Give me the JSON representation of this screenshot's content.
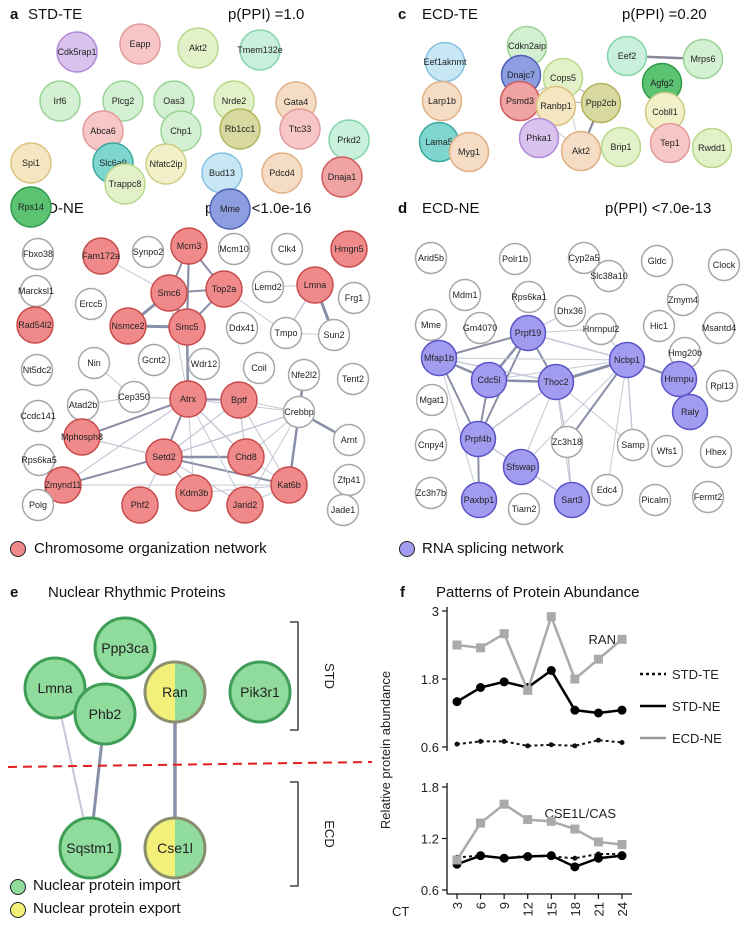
{
  "panel_a": {
    "letter": "a",
    "title": "STD-TE",
    "ppi": "p(PPI) =1.0",
    "nodes": [
      {
        "label": "Cdk5rap1",
        "fill": "#d9c2ee",
        "stroke": "#b08ad6"
      },
      {
        "label": "Eapp",
        "fill": "#f7c6c6",
        "stroke": "#e39a9a"
      },
      {
        "label": "Akt2",
        "fill": "#e3f1c8",
        "stroke": "#b8d98a"
      },
      {
        "label": "Tmem132e",
        "fill": "#c8f0dc",
        "stroke": "#86d4a8"
      },
      {
        "label": "Irf6",
        "fill": "#d4f0d2",
        "stroke": "#9bd397"
      },
      {
        "label": "Plcg2",
        "fill": "#d4f0d2",
        "stroke": "#9bd397"
      },
      {
        "label": "Oas3",
        "fill": "#d4f0d2",
        "stroke": "#9bd397"
      },
      {
        "label": "Nrde2",
        "fill": "#e3f1c8",
        "stroke": "#b8d98a"
      },
      {
        "label": "Gata4",
        "fill": "#f5dcc4",
        "stroke": "#e0b185"
      },
      {
        "label": "Abca6",
        "fill": "#f7c6c6",
        "stroke": "#e39a9a"
      },
      {
        "label": "Chp1",
        "fill": "#d4f0d2",
        "stroke": "#9bd397"
      },
      {
        "label": "Rb1cc1",
        "fill": "#d8d9a0",
        "stroke": "#b3b45a"
      },
      {
        "label": "Ttc33",
        "fill": "#f7c6c6",
        "stroke": "#e39a9a"
      },
      {
        "label": "Prkd2",
        "fill": "#c8f0dc",
        "stroke": "#86d4a8"
      },
      {
        "label": "Spi1",
        "fill": "#f5e6c2",
        "stroke": "#dcc27f"
      },
      {
        "label": "Slc6a9",
        "fill": "#7fd6cf",
        "stroke": "#3aa89e"
      },
      {
        "label": "Nfatc2ip",
        "fill": "#f2f0c8",
        "stroke": "#d0cc86"
      },
      {
        "label": "Bud13",
        "fill": "#c7e7f5",
        "stroke": "#86c2e0"
      },
      {
        "label": "Pdcd4",
        "fill": "#f5dcc4",
        "stroke": "#e0b185"
      },
      {
        "label": "Rps14",
        "fill": "#5cc373",
        "stroke": "#2f9a48"
      },
      {
        "label": "Trappc8",
        "fill": "#e3f1c8",
        "stroke": "#b8d98a"
      },
      {
        "label": "Mme",
        "fill": "#8d9ee0",
        "stroke": "#4d60b5"
      },
      {
        "label": "Dnaja1",
        "fill": "#f0a3a3",
        "stroke": "#d25c5c"
      }
    ]
  },
  "panel_c": {
    "letter": "c",
    "title": "ECD-TE",
    "ppi": "p(PPI) =0.20",
    "nodes": [
      {
        "label": "Eef1aknmt",
        "fill": "#c7e7f5",
        "stroke": "#86c2e0"
      },
      {
        "label": "Cdkn2aip",
        "fill": "#d4f0d2",
        "stroke": "#9bd397"
      },
      {
        "label": "Eef2",
        "fill": "#c8f0dc",
        "stroke": "#86d4a8"
      },
      {
        "label": "Mrps6",
        "fill": "#d4f0d2",
        "stroke": "#9bd397"
      },
      {
        "label": "Dnajc7",
        "fill": "#8d9ee0",
        "stroke": "#4d60b5"
      },
      {
        "label": "Cops5",
        "fill": "#e3f1c8",
        "stroke": "#b8d98a"
      },
      {
        "label": "Agfg2",
        "fill": "#5cc373",
        "stroke": "#2f9a48"
      },
      {
        "label": "Larp1b",
        "fill": "#f5dcc4",
        "stroke": "#e0b185"
      },
      {
        "label": "Psmd3",
        "fill": "#f0a3a3",
        "stroke": "#d25c5c"
      },
      {
        "label": "Ranbp1",
        "fill": "#f5e6c2",
        "stroke": "#dcc27f"
      },
      {
        "label": "Ppp2cb",
        "fill": "#d8d9a0",
        "stroke": "#b3b45a"
      },
      {
        "label": "Cobll1",
        "fill": "#f2f0c8",
        "stroke": "#d0cc86"
      },
      {
        "label": "Lama5",
        "fill": "#7fd6cf",
        "stroke": "#3aa89e"
      },
      {
        "label": "Phka1",
        "fill": "#d9c2ee",
        "stroke": "#b08ad6"
      },
      {
        "label": "Myg1",
        "fill": "#f5dcc4",
        "stroke": "#e0b185"
      },
      {
        "label": "Akt2",
        "fill": "#f5dcc4",
        "stroke": "#e0b185"
      },
      {
        "label": "Brip1",
        "fill": "#e3f1c8",
        "stroke": "#b8d98a"
      },
      {
        "label": "Tep1",
        "fill": "#f7c6c6",
        "stroke": "#e39a9a"
      },
      {
        "label": "Rwdd1",
        "fill": "#e3f1c8",
        "stroke": "#b8d98a"
      }
    ]
  },
  "panel_b": {
    "letter": "b",
    "title": "STD-NE",
    "ppi": "p(PPI) <1.0e-16",
    "nodes": [
      "Fbxo38",
      "Fam172a",
      "Synpo2",
      "Mcm3",
      "Mcm10",
      "Clk4",
      "Hmgn5",
      "Marcksl1",
      "Smc6",
      "Top2a",
      "Lemd2",
      "Lmna",
      "Frg1",
      "Ercc5",
      "Nsmce2",
      "Smc5",
      "Ddx41",
      "Tmpo",
      "Sun2",
      "Rad54l2",
      "Nin",
      "Gcnt2",
      "Wdr12",
      "Coil",
      "Nfe2l2",
      "Tent2",
      "Nt5dc2",
      "Cep350",
      "Atrx",
      "Bptf",
      "Crebbp",
      "Atad2b",
      "Arnt",
      "Ccdc141",
      "Mphosph8",
      "Setd2",
      "Chd8",
      "Rps6ka5",
      "Zfp41",
      "Zmynd11",
      "Kdm3b",
      "Kat6b",
      "Polg",
      "Phf2",
      "Jarid2",
      "Jade1"
    ],
    "highlighted": [
      "Fam172a",
      "Mcm3",
      "Hmgn5",
      "Smc6",
      "Top2a",
      "Lmna",
      "Nsmce2",
      "Smc5",
      "Rad54l2",
      "Atrx",
      "Bptf",
      "Mphosph8",
      "Setd2",
      "Chd8",
      "Zmynd11",
      "Kdm3b",
      "Kat6b",
      "Phf2",
      "Jarid2"
    ],
    "highlight_color": "#f08a8a"
  },
  "panel_d": {
    "letter": "d",
    "title": "ECD-NE",
    "ppi": "p(PPI) <7.0e-13",
    "nodes": [
      "Arid5b",
      "Polr1b",
      "Cyp2a5",
      "Gldc",
      "Clock",
      "Mdm1",
      "Rps6ka1",
      "Slc38a10",
      "Zmym4",
      "Mme",
      "Gm4070",
      "Dhx36",
      "Hic1",
      "Msantd4",
      "Prpf19",
      "Hnrnpul2",
      "Hmg20b",
      "Mfap1b",
      "Ncbp1",
      "Hnrnpu",
      "Rpl13",
      "Mgat1",
      "Cdc5l",
      "Thoc2",
      "Raly",
      "Cnpy4",
      "Prpf4b",
      "Zc3h18",
      "Samp",
      "Wfs1",
      "Hhex",
      "Sfswap",
      "Edc4",
      "Zc3h7b",
      "Paxbp1",
      "Tiam2",
      "Sart3",
      "Picalm",
      "Fermt2"
    ],
    "highlighted": [
      "Prpf19",
      "Mfap1b",
      "Ncbp1",
      "Hnrnpu",
      "Cdc5l",
      "Thoc2",
      "Raly",
      "Prpf4b",
      "Sfswap",
      "Paxbp1",
      "Sart3"
    ],
    "highlight_color": "#a29cf0"
  },
  "legend_bd": {
    "chromosome": {
      "label": "Chromosome organization network",
      "color": "#f08a8a"
    },
    "splicing": {
      "label": "RNA splicing network",
      "color": "#a29cf0"
    }
  },
  "panel_e": {
    "letter": "e",
    "title": "Nuclear Rhythmic Proteins",
    "std_label": "STD",
    "ecd_label": "ECD",
    "nodes": [
      {
        "label": "Ppp3ca",
        "type": "import"
      },
      {
        "label": "Lmna",
        "type": "import"
      },
      {
        "label": "Phb2",
        "type": "import"
      },
      {
        "label": "Ran",
        "type": "both"
      },
      {
        "label": "Pik3r1",
        "type": "import"
      },
      {
        "label": "Sqstm1",
        "type": "import"
      },
      {
        "label": "Cse1l",
        "type": "both"
      }
    ],
    "legend": {
      "import": {
        "label": "Nuclear protein import",
        "color": "#8fdc9c"
      },
      "export": {
        "label": "Nuclear protein export",
        "color": "#f3f07a"
      }
    }
  },
  "panel_f": {
    "letter": "f",
    "title": "Patterns of Protein Abundance",
    "ylabel": "Relative protein abundance",
    "x_prefix": "CT",
    "legend": [
      {
        "name": "STD-TE",
        "style": "dotted",
        "color": "#111111"
      },
      {
        "name": "STD-NE",
        "style": "solid",
        "color": "#000000"
      },
      {
        "name": "ECD-NE",
        "style": "solid",
        "color": "#999999"
      }
    ]
  },
  "chart_data": [
    {
      "type": "line",
      "title": "RAN",
      "x": [
        3,
        6,
        9,
        12,
        15,
        18,
        21,
        24
      ],
      "ylim": [
        0.6,
        3
      ],
      "yticks": [
        "0.6",
        "1.8",
        "3"
      ],
      "series": [
        {
          "name": "STD-TE",
          "values": [
            0.65,
            0.7,
            0.7,
            0.62,
            0.64,
            0.62,
            0.72,
            0.68
          ]
        },
        {
          "name": "STD-NE",
          "values": [
            1.4,
            1.65,
            1.75,
            1.65,
            1.95,
            1.25,
            1.2,
            1.25
          ]
        },
        {
          "name": "ECD-NE",
          "values": [
            2.4,
            2.35,
            2.6,
            1.6,
            2.9,
            1.8,
            2.15,
            2.5
          ]
        }
      ]
    },
    {
      "type": "line",
      "title": "CSE1L/CAS",
      "x": [
        3,
        6,
        9,
        12,
        15,
        18,
        21,
        24
      ],
      "xticks": [
        "3",
        "6",
        "9",
        "12",
        "15",
        "18",
        "21",
        "24"
      ],
      "ylim": [
        0.6,
        1.8
      ],
      "yticks": [
        "0.6",
        "1.2",
        "1.8"
      ],
      "series": [
        {
          "name": "STD-TE",
          "values": [
            0.98,
            1.0,
            0.97,
            1.0,
            0.99,
            0.97,
            1.02,
            1.02
          ]
        },
        {
          "name": "STD-NE",
          "values": [
            0.9,
            1.0,
            0.97,
            0.99,
            1.0,
            0.87,
            0.97,
            1.0
          ]
        },
        {
          "name": "ECD-NE",
          "values": [
            0.95,
            1.38,
            1.6,
            1.42,
            1.4,
            1.31,
            1.16,
            1.13
          ]
        }
      ]
    }
  ]
}
